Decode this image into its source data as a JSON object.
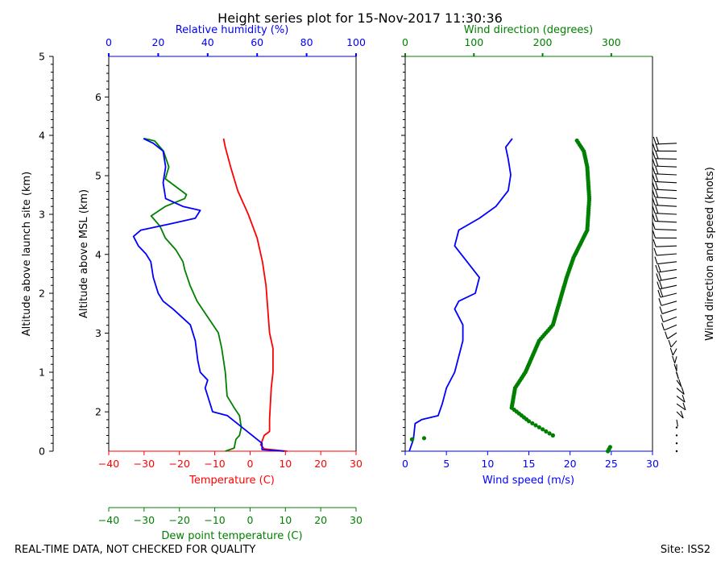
{
  "title": "Height series plot for 15-Nov-2017 11:30:36",
  "footer": {
    "left": "REAL-TIME DATA, NOT CHECKED FOR QUALITY",
    "right": "Site: ISS2"
  },
  "colors": {
    "temperature": "#ff0000",
    "dewpoint": "#008000",
    "humidity": "#0000ff",
    "wind_speed": "#0000ff",
    "wind_direction": "#008000",
    "barbs": "#000000",
    "axis": "#000000"
  },
  "axes": {
    "alt_launch": {
      "label": "Altitude above launch site (km)",
      "ticks": [
        "0",
        "1",
        "2",
        "3",
        "4",
        "5"
      ]
    },
    "alt_msl": {
      "label": "Altitude above MSL (km)",
      "ticks": [
        "2",
        "3",
        "4",
        "5",
        "6"
      ]
    },
    "humidity": {
      "label": "Relative humidity (%)",
      "ticks": [
        "0",
        "20",
        "40",
        "60",
        "80",
        "100"
      ]
    },
    "temperature": {
      "label": "Temperature (C)",
      "ticks": [
        "−40",
        "−30",
        "−20",
        "−10",
        "0",
        "10",
        "20",
        "30"
      ]
    },
    "dewpoint": {
      "label": "Dew point temperature (C)",
      "ticks": [
        "−40",
        "−30",
        "−20",
        "−10",
        "0",
        "10",
        "20",
        "30"
      ]
    },
    "wind_dir": {
      "label": "Wind direction (degrees)",
      "ticks": [
        "0",
        "100",
        "200",
        "300"
      ]
    },
    "wind_speed": {
      "label": "Wind speed (m/s)",
      "ticks": [
        "0",
        "5",
        "10",
        "15",
        "20",
        "25",
        "30"
      ]
    },
    "barbs": {
      "label": "Wind direction and speed (knots)"
    }
  },
  "chart_data": [
    {
      "type": "line",
      "panel": "thermodynamics",
      "y_axis": "Altitude above launch site (km)",
      "ylim": [
        0,
        5
      ],
      "series": [
        {
          "name": "Temperature (C)",
          "xlim": [
            -40,
            30
          ],
          "points": [
            [
              10.5,
              0
            ],
            [
              4,
              0.03
            ],
            [
              3,
              0.08
            ],
            [
              4,
              0.2
            ],
            [
              5.5,
              0.25
            ],
            [
              5.5,
              0.4
            ],
            [
              6,
              0.8
            ],
            [
              6.5,
              1.0
            ],
            [
              6.5,
              1.3
            ],
            [
              5.5,
              1.5
            ],
            [
              5,
              1.8
            ],
            [
              4.5,
              2.1
            ],
            [
              3.5,
              2.4
            ],
            [
              2,
              2.7
            ],
            [
              -0.5,
              3.0
            ],
            [
              -3.5,
              3.3
            ],
            [
              -5.5,
              3.6
            ],
            [
              -7,
              3.85
            ],
            [
              -7.5,
              3.96
            ]
          ]
        },
        {
          "name": "Dew point temperature (C)",
          "xlim": [
            -40,
            30
          ],
          "points": [
            [
              -7,
              0
            ],
            [
              -4.5,
              0.04
            ],
            [
              -4,
              0.15
            ],
            [
              -3,
              0.2
            ],
            [
              -2.5,
              0.3
            ],
            [
              -3,
              0.45
            ],
            [
              -4.5,
              0.55
            ],
            [
              -6.5,
              0.7
            ],
            [
              -7,
              1.0
            ],
            [
              -8,
              1.3
            ],
            [
              -9,
              1.5
            ],
            [
              -12,
              1.7
            ],
            [
              -15,
              1.9
            ],
            [
              -17,
              2.1
            ],
            [
              -18.5,
              2.3
            ],
            [
              -19,
              2.4
            ],
            [
              -21,
              2.55
            ],
            [
              -24,
              2.7
            ],
            [
              -25.5,
              2.85
            ],
            [
              -28,
              2.98
            ],
            [
              -24,
              3.1
            ],
            [
              -18.5,
              3.2
            ],
            [
              -18,
              3.25
            ],
            [
              -24,
              3.45
            ],
            [
              -23,
              3.6
            ],
            [
              -24.5,
              3.8
            ],
            [
              -27,
              3.93
            ],
            [
              -30,
              3.96
            ]
          ]
        },
        {
          "name": "Relative humidity (%)",
          "xlim": [
            0,
            100
          ],
          "points": [
            [
              71,
              0
            ],
            [
              62,
              0.02
            ],
            [
              62,
              0.1
            ],
            [
              58,
              0.2
            ],
            [
              52,
              0.35
            ],
            [
              48,
              0.45
            ],
            [
              42,
              0.5
            ],
            [
              40,
              0.7
            ],
            [
              39,
              0.8
            ],
            [
              40,
              0.9
            ],
            [
              37,
              1.0
            ],
            [
              36,
              1.15
            ],
            [
              35,
              1.4
            ],
            [
              33,
              1.6
            ],
            [
              26,
              1.8
            ],
            [
              22,
              1.9
            ],
            [
              20,
              2.0
            ],
            [
              18,
              2.2
            ],
            [
              17,
              2.4
            ],
            [
              15,
              2.5
            ],
            [
              12,
              2.6
            ],
            [
              10,
              2.72
            ],
            [
              13,
              2.8
            ],
            [
              25,
              2.88
            ],
            [
              35,
              2.95
            ],
            [
              37,
              3.05
            ],
            [
              30,
              3.1
            ],
            [
              23,
              3.2
            ],
            [
              22,
              3.4
            ],
            [
              23,
              3.6
            ],
            [
              22,
              3.8
            ],
            [
              18,
              3.9
            ],
            [
              14,
              3.96
            ]
          ]
        }
      ]
    },
    {
      "type": "scatter",
      "panel": "wind",
      "y_axis": "Altitude above launch site (km)",
      "ylim": [
        0,
        5
      ],
      "series": [
        {
          "name": "Wind speed (m/s)",
          "xlim": [
            0,
            30
          ],
          "points": [
            [
              0.5,
              0
            ],
            [
              1,
              0.15
            ],
            [
              1.2,
              0.35
            ],
            [
              2,
              0.4
            ],
            [
              4,
              0.45
            ],
            [
              4.5,
              0.6
            ],
            [
              5,
              0.8
            ],
            [
              6,
              1.0
            ],
            [
              6.5,
              1.2
            ],
            [
              7,
              1.4
            ],
            [
              7,
              1.6
            ],
            [
              6,
              1.8
            ],
            [
              6.5,
              1.9
            ],
            [
              8.5,
              2.0
            ],
            [
              9,
              2.2
            ],
            [
              7.5,
              2.4
            ],
            [
              6,
              2.6
            ],
            [
              6.5,
              2.8
            ],
            [
              9,
              2.95
            ],
            [
              11,
              3.1
            ],
            [
              12.5,
              3.3
            ],
            [
              12.8,
              3.5
            ],
            [
              12.5,
              3.7
            ],
            [
              12.2,
              3.85
            ],
            [
              13,
              3.96
            ]
          ]
        },
        {
          "name": "Wind direction (degrees)",
          "xlim": [
            0,
            360
          ],
          "points": [
            [
              295,
              0
            ],
            [
              300,
              0.08
            ],
            [
              10,
              0.15
            ],
            [
              45,
              0.18
            ],
            [
              215,
              0.2
            ],
            [
              180,
              0.38
            ],
            [
              155,
              0.55
            ],
            [
              160,
              0.8
            ],
            [
              175,
              1.0
            ],
            [
              185,
              1.2
            ],
            [
              195,
              1.4
            ],
            [
              215,
              1.6
            ],
            [
              225,
              1.9
            ],
            [
              235,
              2.2
            ],
            [
              245,
              2.45
            ],
            [
              265,
              2.8
            ],
            [
              268,
              3.2
            ],
            [
              265,
              3.6
            ],
            [
              260,
              3.8
            ],
            [
              248,
              3.96
            ]
          ]
        }
      ]
    }
  ]
}
